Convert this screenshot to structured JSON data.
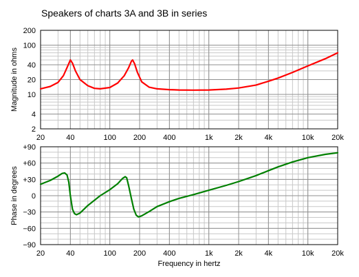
{
  "chart_data": {
    "title": "Speakers of charts 3A and 3B in series",
    "xlabel": "Frequency in hertz",
    "x_scale": "log",
    "xlim": [
      20,
      20000
    ],
    "x_ticks": [
      {
        "value": 20,
        "label": "20"
      },
      {
        "value": 40,
        "label": "40"
      },
      {
        "value": 100,
        "label": "100"
      },
      {
        "value": 200,
        "label": "200"
      },
      {
        "value": 400,
        "label": "400"
      },
      {
        "value": 1000,
        "label": "1k"
      },
      {
        "value": 2000,
        "label": "2k"
      },
      {
        "value": 4000,
        "label": "4k"
      },
      {
        "value": 10000,
        "label": "10k"
      },
      {
        "value": 20000,
        "label": "20k"
      }
    ],
    "grid": true,
    "panels": [
      {
        "type": "line",
        "ylabel": "Magnitude in ohms",
        "y_scale": "log",
        "ylim": [
          2,
          200
        ],
        "y_ticks": [
          {
            "value": 200,
            "label": "200"
          },
          {
            "value": 100,
            "label": "100"
          },
          {
            "value": 40,
            "label": "40"
          },
          {
            "value": 20,
            "label": "20"
          },
          {
            "value": 10,
            "label": "10"
          },
          {
            "value": 4,
            "label": "4"
          },
          {
            "value": 2,
            "label": "2"
          }
        ],
        "series": [
          {
            "color": "#ff0000",
            "points": [
              [
                20,
                13
              ],
              [
                25,
                14.5
              ],
              [
                30,
                17.5
              ],
              [
                34,
                24
              ],
              [
                37,
                35
              ],
              [
                40,
                50
              ],
              [
                42,
                43
              ],
              [
                45,
                30
              ],
              [
                50,
                20
              ],
              [
                60,
                15
              ],
              [
                70,
                13.3
              ],
              [
                80,
                13
              ],
              [
                100,
                13.8
              ],
              [
                120,
                17
              ],
              [
                140,
                24
              ],
              [
                155,
                35
              ],
              [
                165,
                47
              ],
              [
                170,
                50
              ],
              [
                178,
                42
              ],
              [
                190,
                28
              ],
              [
                210,
                18
              ],
              [
                250,
                14
              ],
              [
                300,
                13
              ],
              [
                400,
                12.5
              ],
              [
                500,
                12.3
              ],
              [
                700,
                12.2
              ],
              [
                1000,
                12.3
              ],
              [
                1500,
                12.8
              ],
              [
                2000,
                13.5
              ],
              [
                3000,
                15.5
              ],
              [
                4000,
                18.5
              ],
              [
                5000,
                21.5
              ],
              [
                7000,
                28
              ],
              [
                10000,
                38
              ],
              [
                15000,
                53
              ],
              [
                20000,
                70
              ]
            ]
          }
        ]
      },
      {
        "type": "line",
        "ylabel": "Phase in degrees",
        "y_scale": "linear",
        "ylim": [
          -90,
          90
        ],
        "y_ticks": [
          {
            "value": 90,
            "label": "+90"
          },
          {
            "value": 60,
            "label": "+60"
          },
          {
            "value": 30,
            "label": "+30"
          },
          {
            "value": 0,
            "label": "0"
          },
          {
            "value": -30,
            "label": "−30"
          },
          {
            "value": -60,
            "label": "−60"
          },
          {
            "value": -90,
            "label": "−90"
          }
        ],
        "series": [
          {
            "color": "#008000",
            "points": [
              [
                20,
                21
              ],
              [
                25,
                28
              ],
              [
                30,
                36
              ],
              [
                33,
                41
              ],
              [
                35,
                42
              ],
              [
                37,
                38
              ],
              [
                38.5,
                25
              ],
              [
                40,
                0
              ],
              [
                42,
                -25
              ],
              [
                44,
                -33
              ],
              [
                46,
                -35
              ],
              [
                50,
                -32
              ],
              [
                60,
                -18
              ],
              [
                80,
                0
              ],
              [
                100,
                11
              ],
              [
                120,
                22
              ],
              [
                135,
                32
              ],
              [
                143,
                35
              ],
              [
                148,
                33
              ],
              [
                155,
                18
              ],
              [
                165,
                -5
              ],
              [
                175,
                -25
              ],
              [
                185,
                -36
              ],
              [
                195,
                -39
              ],
              [
                210,
                -37
              ],
              [
                250,
                -29
              ],
              [
                300,
                -20
              ],
              [
                400,
                -11
              ],
              [
                500,
                -5
              ],
              [
                700,
                2
              ],
              [
                1000,
                10
              ],
              [
                1500,
                19
              ],
              [
                2000,
                26
              ],
              [
                3000,
                37
              ],
              [
                4000,
                46
              ],
              [
                5000,
                53
              ],
              [
                7000,
                62
              ],
              [
                10000,
                70
              ],
              [
                15000,
                76
              ],
              [
                20000,
                79
              ]
            ]
          }
        ]
      }
    ]
  }
}
